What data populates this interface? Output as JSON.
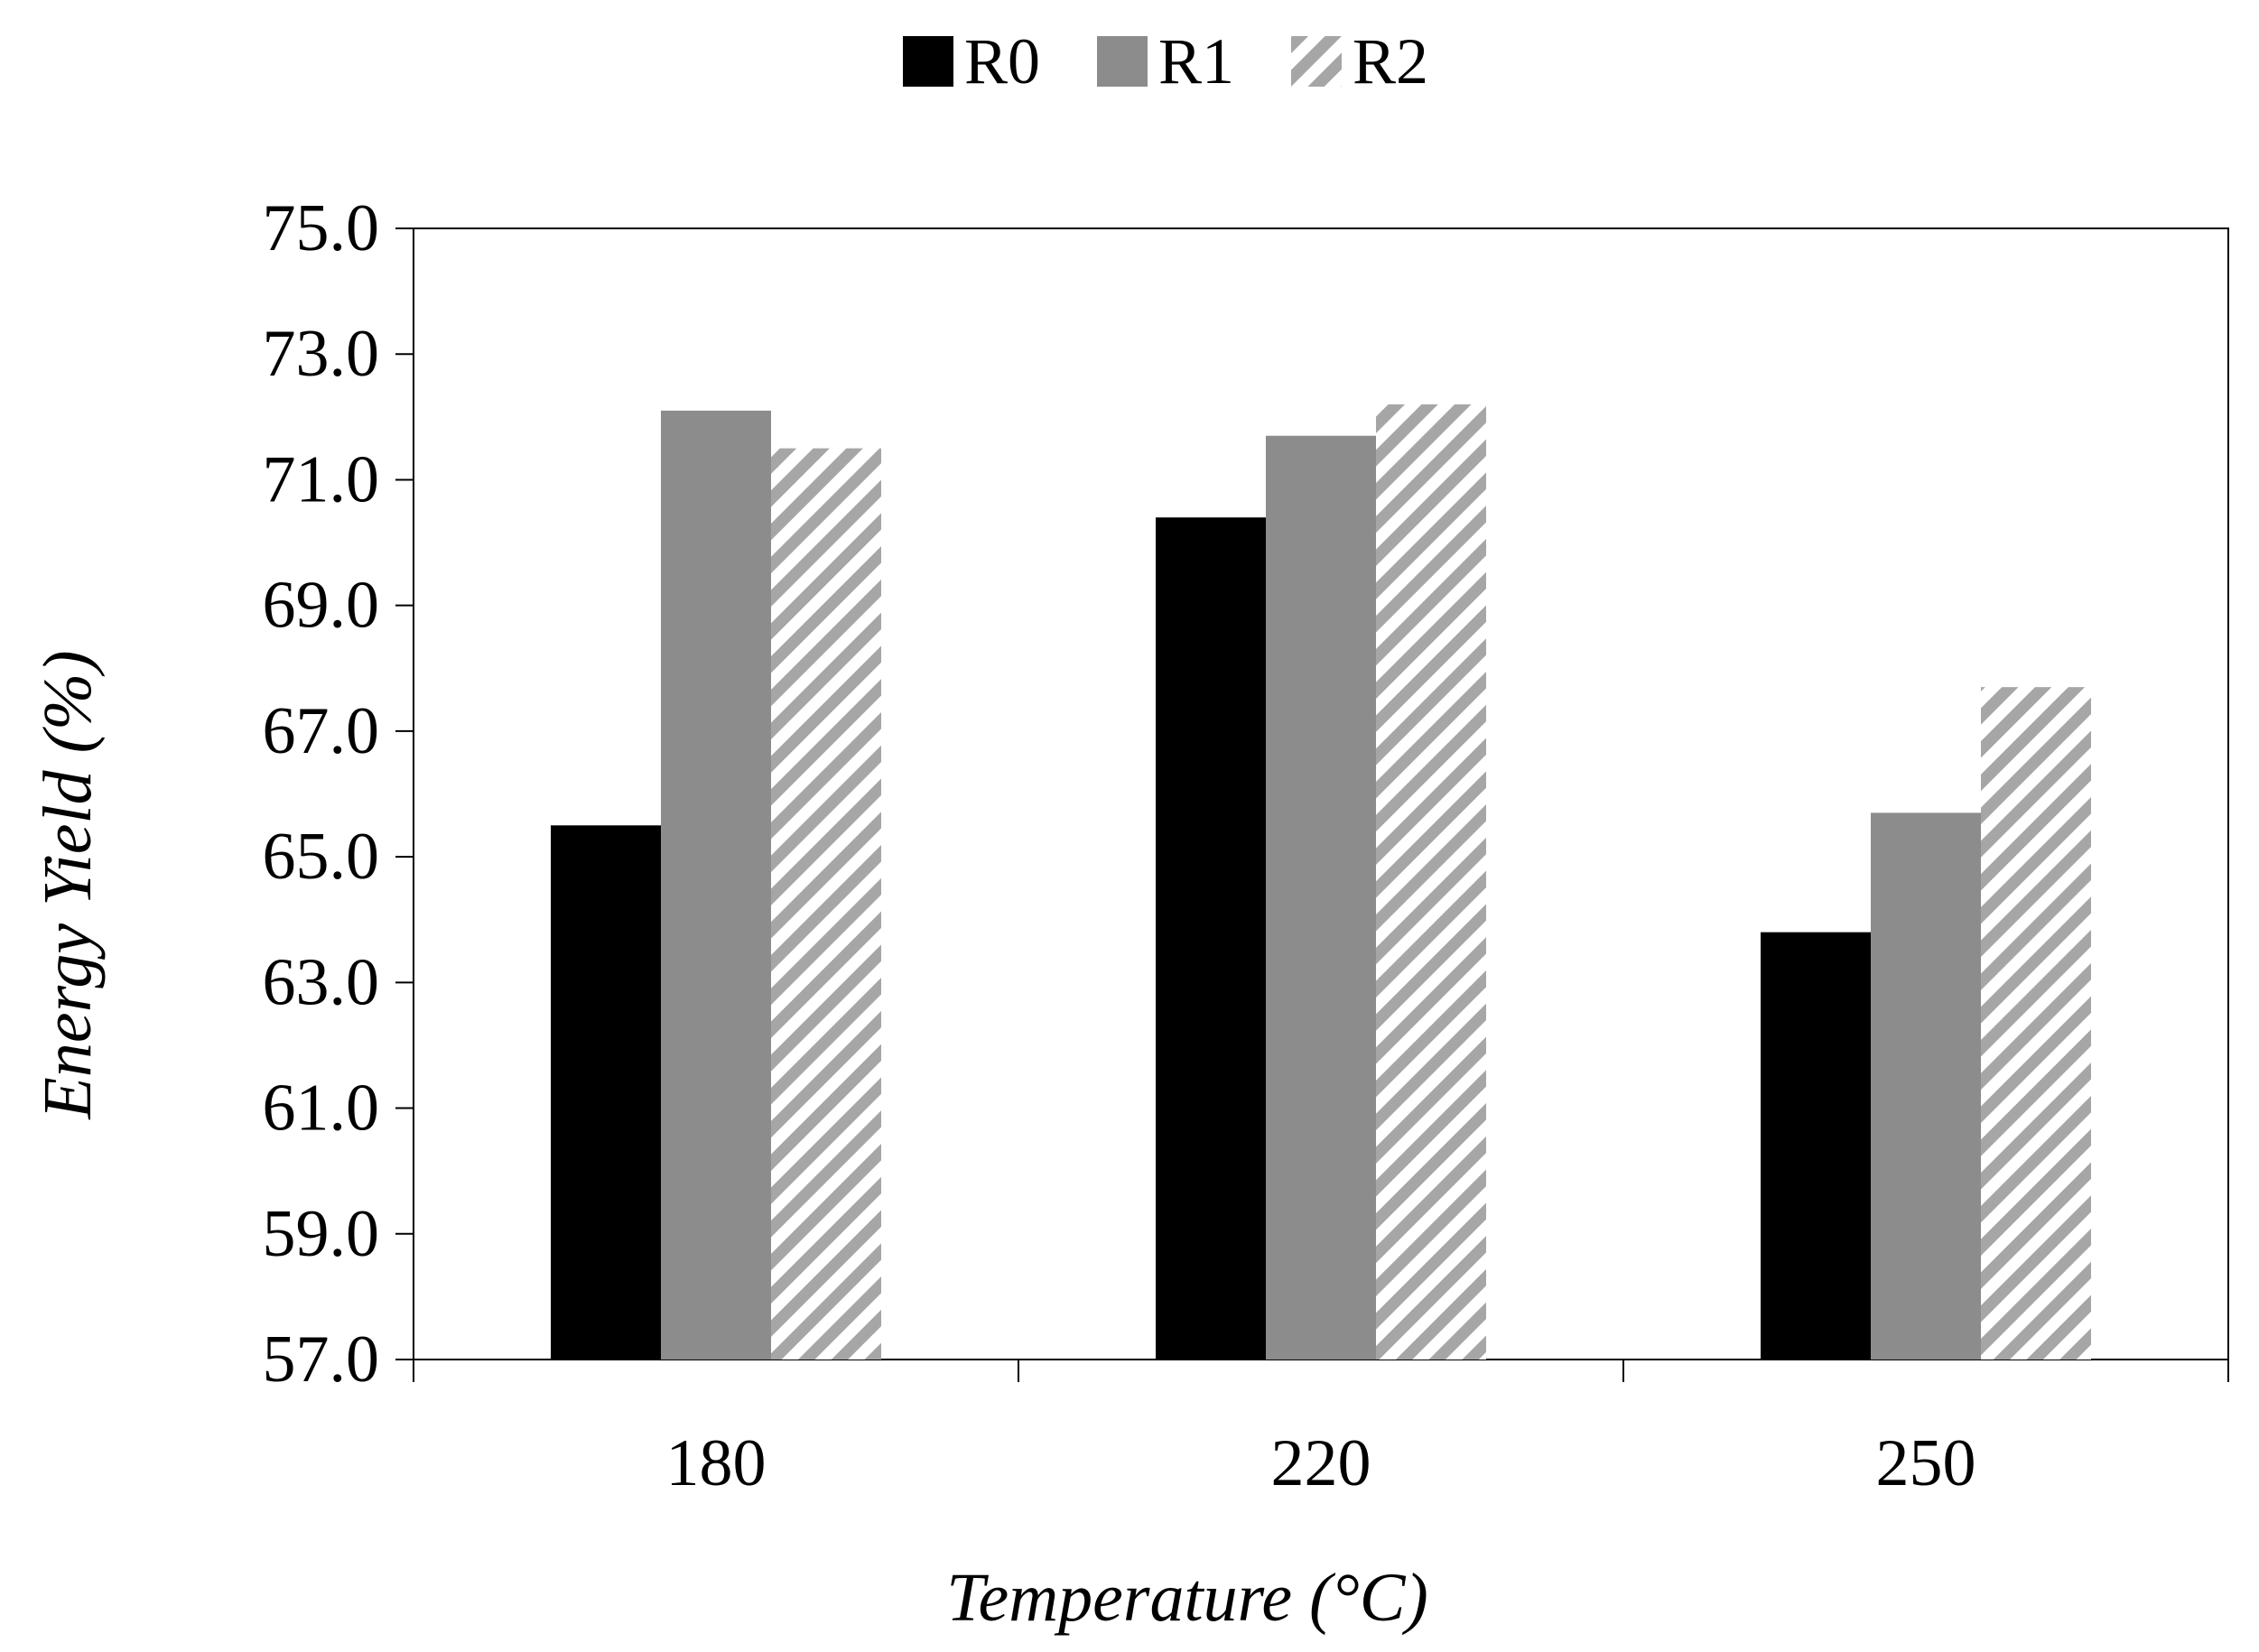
{
  "chart_data": {
    "type": "bar",
    "title": "",
    "xlabel": "Temperature (°C)",
    "ylabel": "Energy Yield (%)",
    "ylim": [
      57.0,
      75.0
    ],
    "yticks": [
      "57.0",
      "59.0",
      "61.0",
      "63.0",
      "65.0",
      "67.0",
      "69.0",
      "71.0",
      "73.0",
      "75.0"
    ],
    "categories": [
      "180",
      "220",
      "250"
    ],
    "series": [
      {
        "name": "R0",
        "values": [
          65.5,
          70.4,
          63.8
        ],
        "color": "#000000",
        "pattern": "solid"
      },
      {
        "name": "R1",
        "values": [
          72.1,
          71.7,
          65.7
        ],
        "color": "#8c8c8c",
        "pattern": "solid"
      },
      {
        "name": "R2",
        "values": [
          71.5,
          72.2,
          67.7
        ],
        "color": "#a6a6a6",
        "pattern": "diagonal-stripes"
      }
    ],
    "legend_position": "top-center",
    "grid": false
  }
}
